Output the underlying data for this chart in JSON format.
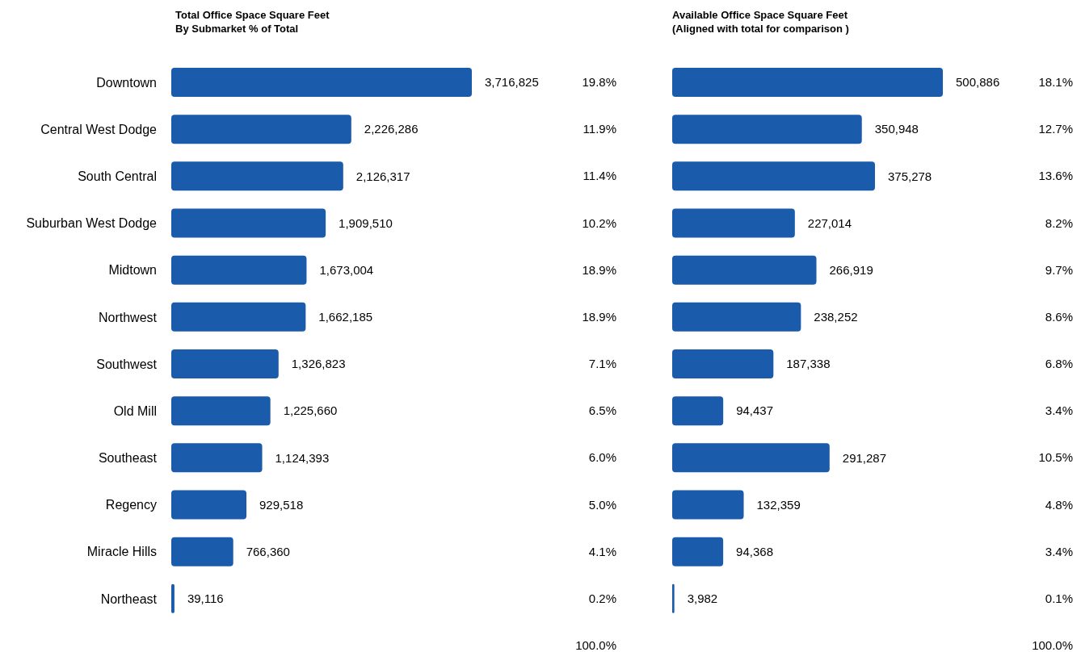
{
  "chart_data": [
    {
      "type": "bar",
      "orientation": "horizontal",
      "title": "Total Office Space Square Feet\nBy Submarket % of Total",
      "categories": [
        "Downtown",
        "Central West Dodge",
        "South Central",
        "Suburban West Dodge",
        "Midtown",
        "Northwest",
        "Southwest",
        "Old Mill",
        "Southeast",
        "Regency",
        "Miracle Hills",
        "Northeast"
      ],
      "values": [
        3716825,
        2226286,
        2126317,
        1909510,
        1673004,
        1662185,
        1326823,
        1225660,
        1124393,
        929518,
        766360,
        39116
      ],
      "color": "#1a5bab",
      "value_labels": [
        "3,716,825",
        "2,226,286",
        "2,126,317",
        "1,909,510",
        "1,673,004",
        "1,662,185",
        "1,326,823",
        "1,225,660",
        "1,124,393",
        "929,518",
        "766,360",
        "39,116"
      ],
      "annotations": [
        "19.8%",
        "11.9%",
        "11.4%",
        "10.2%",
        "18.9%",
        "18.9%",
        "7.1%",
        "6.5%",
        "6.0%",
        "5.0%",
        "4.1%",
        "0.2%",
        "100.0%"
      ]
    },
    {
      "type": "bar",
      "orientation": "horizontal",
      "title": "Available Office Space Square Feet\n(Aligned with total for comparison )",
      "categories": [
        null,
        null,
        null,
        null,
        null,
        null,
        null,
        null,
        null,
        null,
        null,
        null
      ],
      "values": [
        500886,
        350948,
        375278,
        227014,
        266919,
        238252,
        187338,
        94437,
        291287,
        132359,
        94368,
        3982
      ],
      "color": "#1a5bab",
      "value_labels": [
        "500,886",
        "350,948",
        "375,278",
        "227,014",
        "266,919",
        "238,252",
        "187,338",
        "94,437",
        "291,287",
        "132,359",
        "94,368",
        "3,982"
      ],
      "annotations": [
        "18.1%",
        "12.7%",
        "13.6%",
        "8.2%",
        "9.7%",
        "8.6%",
        "6.8%",
        "3.4%",
        "10.5%",
        "4.8%",
        "3.4%",
        "0.1%",
        "100.0%"
      ]
    }
  ]
}
